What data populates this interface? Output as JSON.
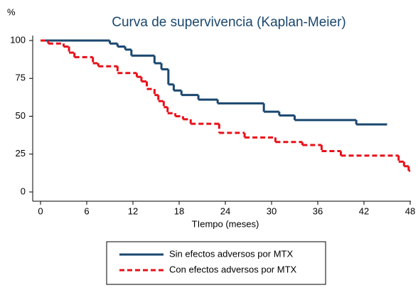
{
  "chart_data": {
    "type": "step",
    "title": "Curva de supervivencia (Kaplan-Meier)",
    "y_label": "%",
    "x_label": "TIempo (meses)",
    "xlim": [
      0,
      48
    ],
    "xticks": [
      0,
      6,
      12,
      18,
      24,
      30,
      36,
      42,
      48
    ],
    "ylim": [
      0,
      100
    ],
    "yticks": [
      0,
      25,
      50,
      75,
      100
    ],
    "legend": "bottom",
    "series": [
      {
        "name": "Sin efectos adversos por MTX",
        "color": "#1a476f",
        "dash": false,
        "x": [
          0,
          9,
          10,
          11,
          11.8,
          14.8,
          15.7,
          16.6,
          17.3,
          18.3,
          20.5,
          23,
          29,
          31,
          33,
          41,
          45
        ],
        "values": [
          100,
          98,
          96,
          94,
          90,
          85,
          81,
          71,
          67,
          64,
          61,
          58.5,
          53,
          50.5,
          47.5,
          44.6,
          44.6
        ]
      },
      {
        "name": "Con efectos adversos por MTX",
        "color": "#e8101a",
        "dash": true,
        "x": [
          0,
          1,
          3,
          3.7,
          4.4,
          6.8,
          7.5,
          10,
          12.5,
          13.1,
          13.8,
          14.8,
          15.3,
          16,
          16.5,
          17.5,
          18.5,
          19.5,
          23.2,
          26.5,
          30.5,
          34,
          36.5,
          39,
          46.5,
          47.2,
          47.8,
          48
        ],
        "values": [
          100,
          98,
          96,
          92,
          89,
          85,
          83,
          78.5,
          76,
          73,
          68,
          64,
          60,
          56,
          52,
          50,
          48,
          45,
          39,
          36,
          33,
          31,
          27,
          24,
          20,
          17,
          14,
          14
        ]
      }
    ]
  }
}
